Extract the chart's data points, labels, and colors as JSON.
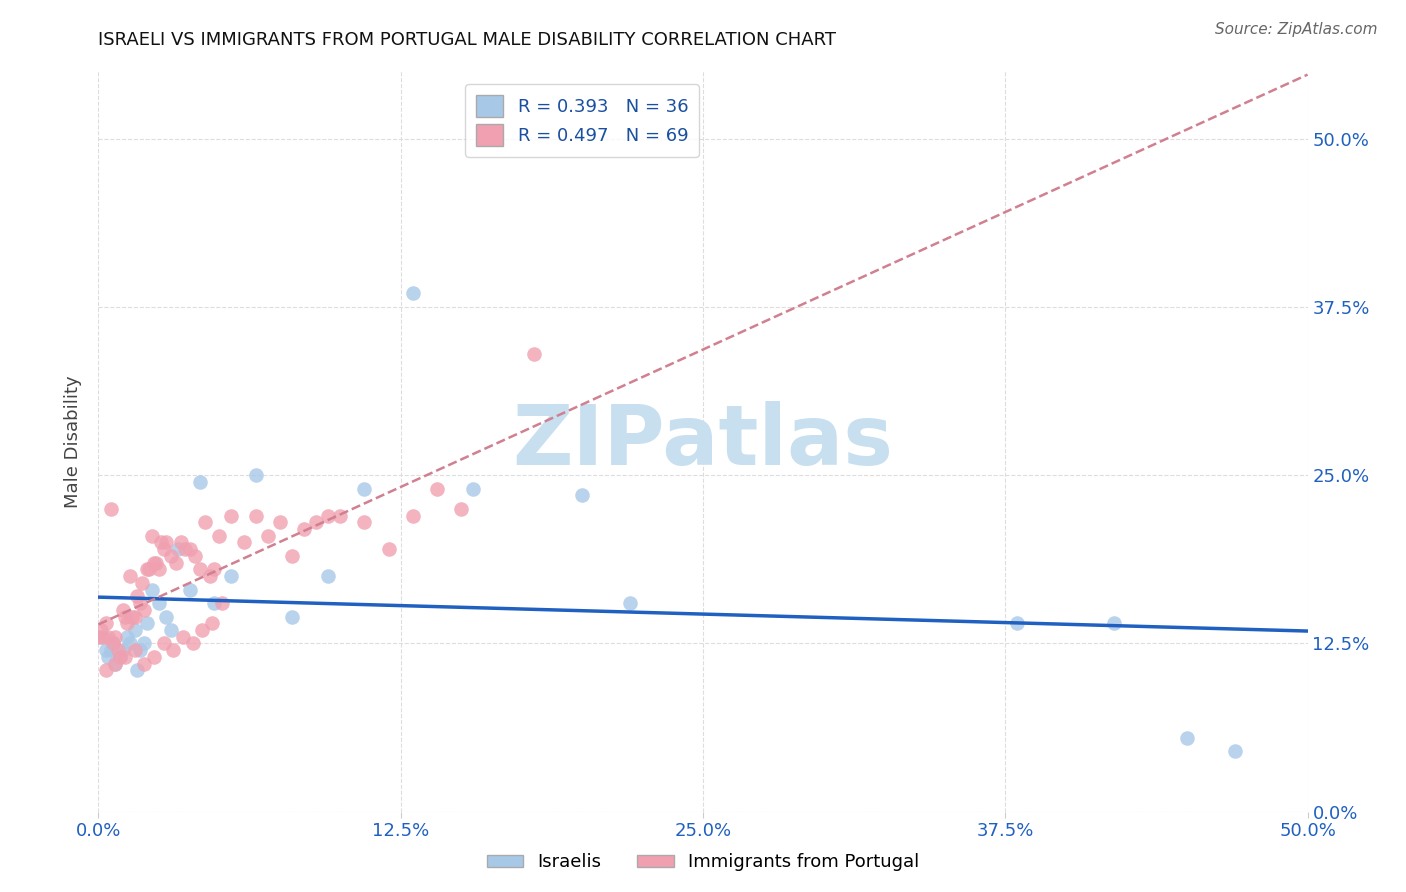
{
  "title": "ISRAELI VS IMMIGRANTS FROM PORTUGAL MALE DISABILITY CORRELATION CHART",
  "source": "Source: ZipAtlas.com",
  "ylabel": "Male Disability",
  "xlim": [
    0.0,
    0.5
  ],
  "ylim": [
    0.0,
    0.55
  ],
  "ytick_labels": [
    "0.0%",
    "12.5%",
    "25.0%",
    "37.5%",
    "50.0%"
  ],
  "ytick_values": [
    0.0,
    0.125,
    0.25,
    0.375,
    0.5
  ],
  "xtick_labels": [
    "0.0%",
    "12.5%",
    "25.0%",
    "37.5%",
    "50.0%"
  ],
  "xtick_values": [
    0.0,
    0.125,
    0.25,
    0.375,
    0.5
  ],
  "israelis_color": "#a8c8e8",
  "portugal_color": "#f0a0b0",
  "israelis_line_color": "#2060c0",
  "portugal_line_color": "#d08090",
  "R_israelis": 0.393,
  "N_israelis": 36,
  "R_portugal": 0.497,
  "N_portugal": 69,
  "watermark_text": "ZIPatlas",
  "watermark_color": "#c8dff0",
  "background_color": "#ffffff",
  "grid_color": "#dddddd",
  "title_color": "#111111",
  "source_color": "#666666",
  "tick_label_color": "#2060c0",
  "ylabel_color": "#444444",
  "legend_text_color": "#1a50a0"
}
